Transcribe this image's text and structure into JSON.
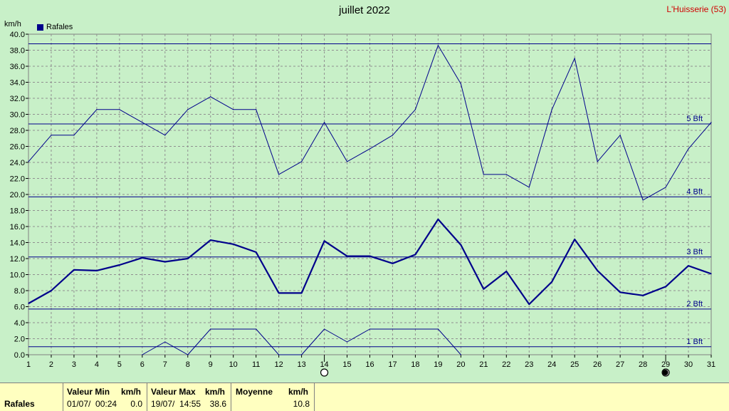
{
  "title": "juillet 2022",
  "station": "L'Huisserie (53)",
  "unit_label": "km/h",
  "legend_label": "Rafales",
  "colors": {
    "series": "#00008b",
    "background": "#c8f0c8",
    "station": "#d00000",
    "footer": "#ffffc0"
  },
  "icons": {
    "day14": "open-circle-icon",
    "day29": "filled-circle-icon"
  },
  "chart_data": {
    "type": "line",
    "title": "juillet 2022",
    "ylabel": "km/h",
    "xlabel": "",
    "x": [
      1,
      2,
      3,
      4,
      5,
      6,
      7,
      8,
      9,
      10,
      11,
      12,
      13,
      14,
      15,
      16,
      17,
      18,
      19,
      20,
      21,
      22,
      23,
      24,
      25,
      26,
      27,
      28,
      29,
      30,
      31
    ],
    "xlim": [
      1,
      31
    ],
    "ylim": [
      0,
      40
    ],
    "yticks": [
      "0.0",
      "2.0",
      "4.0",
      "6.0",
      "8.0",
      "10.0",
      "12.0",
      "14.0",
      "16.0",
      "18.0",
      "20.0",
      "22.0",
      "24.0",
      "26.0",
      "28.0",
      "30.0",
      "32.0",
      "34.0",
      "36.0",
      "38.0",
      "40.0"
    ],
    "grid": true,
    "legend": "top-left",
    "series": [
      {
        "name": "Rafales",
        "role": "max",
        "values": [
          24.1,
          27.4,
          27.4,
          30.6,
          30.6,
          29.0,
          27.4,
          30.6,
          32.2,
          30.6,
          30.6,
          22.5,
          24.1,
          29.0,
          24.1,
          25.7,
          27.4,
          30.6,
          38.6,
          33.8,
          22.5,
          22.5,
          20.9,
          30.6,
          37.0,
          24.1,
          27.4,
          19.3,
          20.9,
          25.7,
          29.0
        ]
      },
      {
        "name": "",
        "role": "mean",
        "values": [
          6.4,
          8.0,
          10.6,
          10.5,
          11.2,
          12.1,
          11.6,
          12.0,
          14.3,
          13.8,
          12.8,
          7.7,
          7.7,
          14.2,
          12.3,
          12.3,
          11.4,
          12.5,
          16.9,
          13.7,
          8.2,
          10.4,
          6.3,
          9.1,
          14.4,
          10.5,
          7.8,
          7.4,
          8.5,
          11.1,
          10.1
        ]
      },
      {
        "name": "",
        "role": "min",
        "x": [
          6,
          7,
          8,
          9,
          10,
          11,
          12,
          13,
          14,
          15,
          16,
          17,
          18,
          19,
          20
        ],
        "values": [
          0.0,
          1.6,
          0.0,
          3.2,
          3.2,
          3.2,
          0.0,
          0.0,
          3.2,
          1.6,
          3.2,
          3.2,
          3.2,
          3.2,
          0.0
        ]
      }
    ],
    "reference_lines": [
      {
        "label": "1 Bft",
        "value": 1.0
      },
      {
        "label": "2 Bft",
        "value": 5.7
      },
      {
        "label": "3 Bft",
        "value": 12.2
      },
      {
        "label": "4 Bft",
        "value": 19.7
      },
      {
        "label": "5 Bft",
        "value": 28.8
      },
      {
        "label": "",
        "value": 38.8
      }
    ],
    "annotations": [
      {
        "x": 14,
        "type": "open-circle"
      },
      {
        "x": 29,
        "type": "filled-circle"
      }
    ]
  },
  "footer": {
    "series_label": "Rafales",
    "min_header": "Valeur Min",
    "min_unit": "km/h",
    "min_date": "01/07/  00:24",
    "min_value": "0.0",
    "max_header": "Valeur Max",
    "max_unit": "km/h",
    "max_date": "19/07/  14:55",
    "max_value": "38.6",
    "mean_header": "Moyenne",
    "mean_unit": "km/h",
    "mean_value": "10.8"
  }
}
